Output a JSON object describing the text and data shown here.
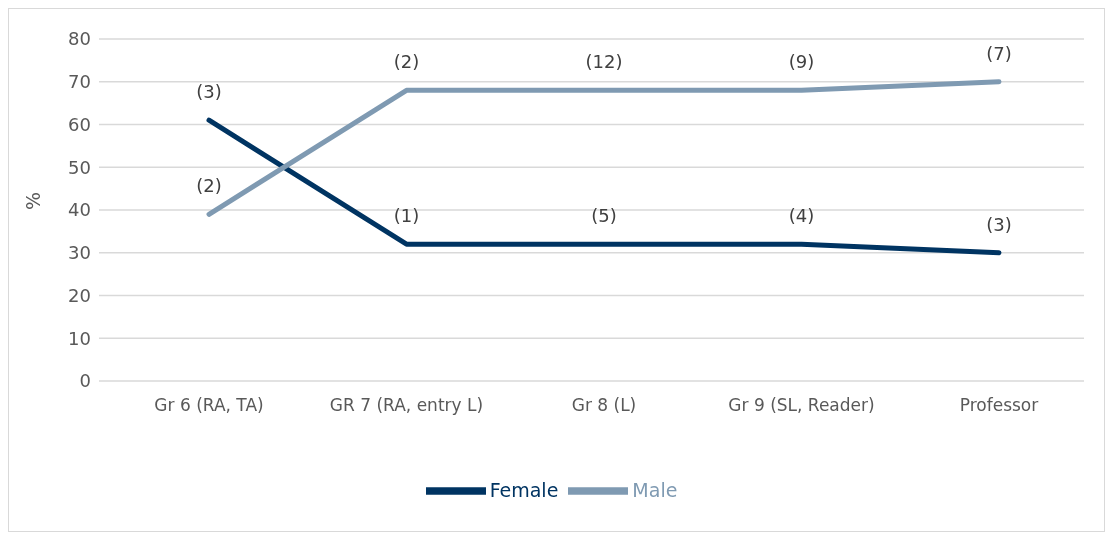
{
  "chart_data": {
    "type": "line",
    "ylabel": "%",
    "categories": [
      "Gr 6 (RA, TA)",
      "GR 7 (RA, entry L)",
      "Gr 8 (L)",
      "Gr 9 (SL, Reader)",
      "Professor"
    ],
    "series": [
      {
        "name": "Female",
        "color": "#003462",
        "values": [
          61,
          32,
          32,
          32,
          30
        ]
      },
      {
        "name": "Male",
        "color": "#7f9ab2",
        "values": [
          39,
          68,
          68,
          68,
          70
        ]
      }
    ],
    "annotations": [
      {
        "text": "(3)",
        "x": "Gr 6 (RA, TA)",
        "y": 61
      },
      {
        "text": "(1)",
        "x": "GR 7 (RA, entry L)",
        "y": 32
      },
      {
        "text": "(5)",
        "x": "Gr 8 (L)",
        "y": 32
      },
      {
        "text": "(4)",
        "x": "Gr 9 (SL, Reader)",
        "y": 32
      },
      {
        "text": "(3)",
        "x": "Professor",
        "y": 30
      },
      {
        "text": "(2)",
        "x": "Gr 6 (RA, TA)",
        "y": 39
      },
      {
        "text": "(2)",
        "x": "GR 7 (RA, entry L)",
        "y": 68
      },
      {
        "text": "(12)",
        "x": "Gr 8 (L)",
        "y": 68
      },
      {
        "text": "(9)",
        "x": "Gr 9 (SL, Reader)",
        "y": 68
      },
      {
        "text": "(7)",
        "x": "Professor",
        "y": 70
      }
    ],
    "ylim": [
      0,
      80
    ],
    "yticks": [
      0,
      10,
      20,
      30,
      40,
      50,
      60,
      70,
      80
    ],
    "grid": "y",
    "legend": "bottom",
    "marker": "none",
    "line_style": "solid"
  }
}
